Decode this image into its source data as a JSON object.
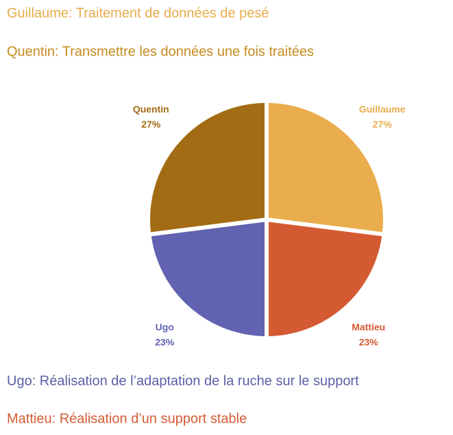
{
  "chart_data": {
    "type": "pie",
    "annotations": [
      {
        "text": "Guillaume: Traitement de données de pesé",
        "color": "#E8AC4C"
      },
      {
        "text": "Quentin: Transmettre les données une fois traitées",
        "color": "#C48A1E"
      },
      {
        "text": "Ugo: Réalisation de l’adaptation de la ruche sur le support",
        "color": "#5B5EA6"
      },
      {
        "text": "Mattieu: Réalisation d’un support stable",
        "color": "#D45A32"
      }
    ],
    "categories": [
      "Guillaume",
      "Mattieu",
      "Ugo",
      "Quentin"
    ],
    "values": [
      27,
      23,
      23,
      27
    ],
    "value_labels": [
      "27%",
      "23%",
      "23%",
      "27%"
    ],
    "colors": [
      "#EAAD4D",
      "#D45A32",
      "#6163B2",
      "#A36C14"
    ]
  }
}
